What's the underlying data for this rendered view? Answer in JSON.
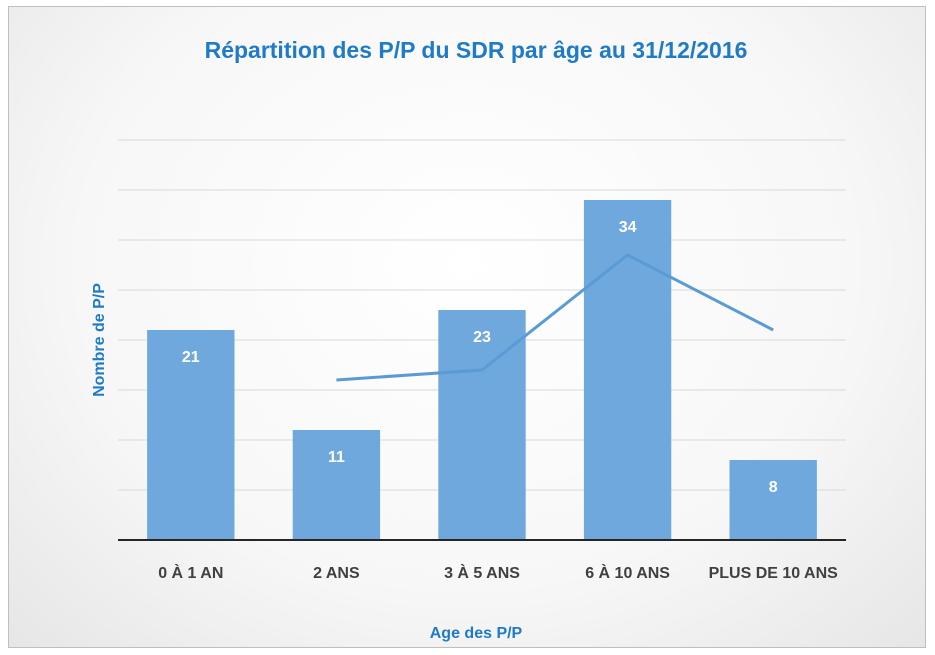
{
  "chart_data": {
    "type": "bar",
    "title": "Répartition des P/P du SDR par âge au 31/12/2016",
    "x_label": "Age des P/P",
    "y_label": "Nombre de P/P",
    "categories": [
      "0 À 1 AN",
      "2 ANS",
      "3 À 5 ANS",
      "6 À 10 ANS",
      "PLUS DE 10 ANS"
    ],
    "series": [
      {
        "type": "bar",
        "color": "#6fa8dc",
        "values": [
          21,
          11,
          23,
          34,
          8
        ]
      },
      {
        "type": "line",
        "color": "#5b9bd5",
        "values": [
          null,
          16,
          17,
          28.5,
          21
        ]
      }
    ],
    "ylim": [
      0,
      40
    ],
    "yticks": [
      0,
      5,
      10,
      15,
      20,
      25,
      30,
      35,
      40
    ],
    "grid": true
  }
}
